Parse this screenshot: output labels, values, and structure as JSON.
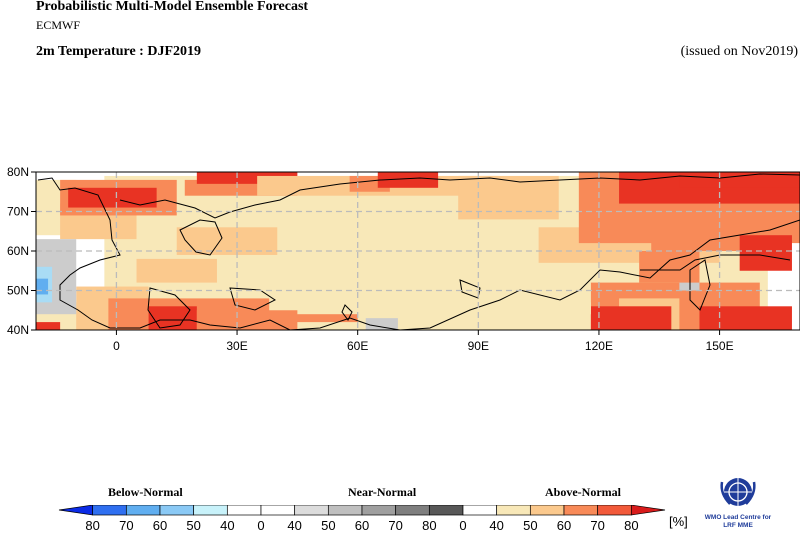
{
  "header": {
    "title": "Probabilistic Multi-Model Ensemble Forecast",
    "subtitle": "ECMWF",
    "variable": "2m Temperature : DJF2019",
    "issued": "(issued on Nov2019)"
  },
  "map": {
    "lat_labels": [
      "80N",
      "70N",
      "60N",
      "50N",
      "40N"
    ],
    "lon_labels": [
      "0",
      "30E",
      "60E",
      "90E",
      "120E",
      "150E"
    ],
    "grid_style": "dashed",
    "colors": {
      "above_40_50": "#f8e8b8",
      "above_50_60": "#fbc98d",
      "above_60_70": "#f88a58",
      "above_70_80": "#e83323",
      "below_40_50": "#a9dcf5",
      "below_50_60": "#60aef0",
      "near_normal": "#cccccc",
      "land_default": "#f8e8b8",
      "ocean": "#ffffff"
    }
  },
  "legend": {
    "categories": [
      "Below-Normal",
      "Near-Normal",
      "Above-Normal"
    ],
    "tick_labels": [
      "80",
      "70",
      "60",
      "50",
      "40",
      "0",
      "40",
      "50",
      "60",
      "70",
      "80",
      "0",
      "40",
      "50",
      "60",
      "70",
      "80"
    ],
    "unit": "[%]",
    "colors": [
      "#0b2be6",
      "#2f6ff0",
      "#60aef0",
      "#8ac9f5",
      "#c8f2fa",
      "#ffffff",
      "#ffffff",
      "#dcdcdc",
      "#bfbfbf",
      "#9f9f9f",
      "#7f7f7f",
      "#585858",
      "#ffffff",
      "#f8e8b8",
      "#fbc98d",
      "#f88a58",
      "#f25a3a",
      "#d81b1b"
    ]
  },
  "logo": {
    "text_line1": "WMO Lead Centre for",
    "text_line2": "LRF MME",
    "icon": "wmo-emblem-icon"
  }
}
